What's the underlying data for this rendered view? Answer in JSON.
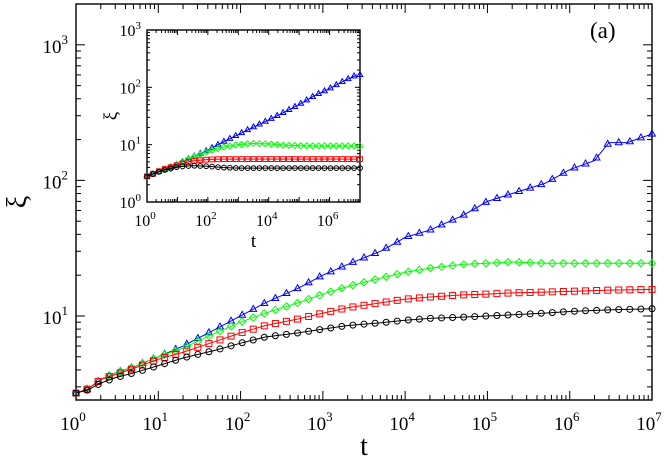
{
  "chart_data": [
    {
      "type": "scatter",
      "panel_label": "(a)",
      "xlabel": "t",
      "ylabel": "ξ",
      "x_scale": "log",
      "y_scale": "log",
      "xlim": [
        1,
        10000000
      ],
      "ylim": [
        2.4,
        2000
      ],
      "x_ticks": [
        {
          "base": "10",
          "exp": "0",
          "value": 1
        },
        {
          "base": "10",
          "exp": "1",
          "value": 10
        },
        {
          "base": "10",
          "exp": "2",
          "value": 100
        },
        {
          "base": "10",
          "exp": "3",
          "value": 1000
        },
        {
          "base": "10",
          "exp": "4",
          "value": 10000
        },
        {
          "base": "10",
          "exp": "5",
          "value": 100000
        },
        {
          "base": "10",
          "exp": "6",
          "value": 1000000
        },
        {
          "base": "10",
          "exp": "7",
          "value": 10000000
        }
      ],
      "y_ticks": [
        {
          "base": "10",
          "exp": "1",
          "value": 10
        },
        {
          "base": "10",
          "exp": "2",
          "value": 100
        },
        {
          "base": "10",
          "exp": "3",
          "value": 1000
        }
      ],
      "series": [
        {
          "color": "#0000ff",
          "marker": "triangle",
          "points": [
            [
              1,
              2.7
            ],
            [
              1.4,
              2.9
            ],
            [
              2,
              3.4
            ],
            [
              3,
              3.8
            ],
            [
              5,
              4.2
            ],
            [
              10,
              5
            ],
            [
              20,
              6
            ],
            [
              50,
              8
            ],
            [
              100,
              10
            ],
            [
              200,
              12.5
            ],
            [
              500,
              16
            ],
            [
              1000,
              20
            ],
            [
              2000,
              24
            ],
            [
              5000,
              30
            ],
            [
              8000,
              35
            ],
            [
              10000,
              38
            ],
            [
              20000,
              43
            ],
            [
              50000,
              55
            ],
            [
              100000,
              70
            ],
            [
              200000,
              80
            ],
            [
              500000,
              95
            ],
            [
              1000000,
              120
            ],
            [
              2000000,
              140
            ],
            [
              3000000,
              190
            ],
            [
              5000000,
              190
            ],
            [
              10000000,
              220
            ]
          ]
        },
        {
          "color": "#00ff00",
          "marker": "diamond",
          "points": [
            [
              1,
              2.7
            ],
            [
              1.4,
              2.9
            ],
            [
              2,
              3.4
            ],
            [
              3,
              3.8
            ],
            [
              5,
              4.2
            ],
            [
              10,
              5
            ],
            [
              20,
              5.8
            ],
            [
              50,
              7.5
            ],
            [
              100,
              9
            ],
            [
              200,
              10.5
            ],
            [
              500,
              12.5
            ],
            [
              1000,
              14.5
            ],
            [
              2000,
              16.5
            ],
            [
              5000,
              19
            ],
            [
              10000,
              21
            ],
            [
              20000,
              22.5
            ],
            [
              50000,
              24
            ],
            [
              100000,
              24.5
            ],
            [
              200000,
              25
            ],
            [
              500000,
              24.5
            ],
            [
              1000000,
              24.5
            ],
            [
              3000000,
              24.5
            ],
            [
              10000000,
              24.5
            ]
          ]
        },
        {
          "color": "#ff0000",
          "marker": "square",
          "points": [
            [
              1,
              2.7
            ],
            [
              1.4,
              2.9
            ],
            [
              2,
              3.4
            ],
            [
              3,
              3.7
            ],
            [
              5,
              4.1
            ],
            [
              10,
              4.8
            ],
            [
              20,
              5.4
            ],
            [
              50,
              6.5
            ],
            [
              100,
              7.5
            ],
            [
              200,
              8.5
            ],
            [
              500,
              9.5
            ],
            [
              1000,
              10.5
            ],
            [
              2000,
              11.5
            ],
            [
              5000,
              12.5
            ],
            [
              10000,
              13.3
            ],
            [
              20000,
              13.8
            ],
            [
              50000,
              14.3
            ],
            [
              100000,
              14.5
            ],
            [
              200000,
              14.8
            ],
            [
              500000,
              15
            ],
            [
              1000000,
              15.2
            ],
            [
              3000000,
              15.5
            ],
            [
              10000000,
              15.7
            ]
          ]
        },
        {
          "color": "#000000",
          "marker": "circle",
          "points": [
            [
              1,
              2.7
            ],
            [
              1.4,
              2.85
            ],
            [
              2,
              3.2
            ],
            [
              3,
              3.5
            ],
            [
              5,
              3.8
            ],
            [
              10,
              4.3
            ],
            [
              20,
              4.9
            ],
            [
              50,
              5.6
            ],
            [
              100,
              6.3
            ],
            [
              200,
              7
            ],
            [
              500,
              7.5
            ],
            [
              1000,
              8
            ],
            [
              2000,
              8.5
            ],
            [
              5000,
              8.9
            ],
            [
              10000,
              9.3
            ],
            [
              20000,
              9.6
            ],
            [
              50000,
              9.8
            ],
            [
              100000,
              10
            ],
            [
              200000,
              10.2
            ],
            [
              500000,
              10.5
            ],
            [
              1000000,
              10.8
            ],
            [
              3000000,
              11.1
            ],
            [
              10000000,
              11.3
            ]
          ]
        }
      ]
    },
    {
      "type": "scatter",
      "xlabel": "t",
      "ylabel": "ξ",
      "x_scale": "log",
      "y_scale": "log",
      "xlim": [
        1,
        10000000
      ],
      "ylim": [
        1,
        1000
      ],
      "x_ticks": [
        {
          "base": "10",
          "exp": "0",
          "value": 1
        },
        {
          "base": "10",
          "exp": "2",
          "value": 100
        },
        {
          "base": "10",
          "exp": "4",
          "value": 10000
        },
        {
          "base": "10",
          "exp": "6",
          "value": 1000000
        }
      ],
      "y_ticks": [
        {
          "base": "10",
          "exp": "0",
          "value": 1
        },
        {
          "base": "10",
          "exp": "1",
          "value": 10
        },
        {
          "base": "10",
          "exp": "2",
          "value": 100
        },
        {
          "base": "10",
          "exp": "3",
          "value": 1000
        }
      ],
      "series": [
        {
          "color": "#0000ff",
          "marker": "triangle",
          "points": [
            [
              1,
              2.8
            ],
            [
              3,
              3.5
            ],
            [
              10,
              4.5
            ],
            [
              30,
              6
            ],
            [
              100,
              8
            ],
            [
              300,
              11
            ],
            [
              1000,
              15
            ],
            [
              3000,
              20
            ],
            [
              10000,
              27
            ],
            [
              30000,
              36
            ],
            [
              100000,
              50
            ],
            [
              300000,
              70
            ],
            [
              1000000,
              95
            ],
            [
              3000000,
              130
            ],
            [
              8000000,
              165
            ]
          ]
        },
        {
          "color": "#00ff00",
          "marker": "diamond",
          "points": [
            [
              1,
              2.8
            ],
            [
              3,
              3.6
            ],
            [
              10,
              4.6
            ],
            [
              30,
              6
            ],
            [
              100,
              7.6
            ],
            [
              300,
              9
            ],
            [
              1000,
              10
            ],
            [
              3000,
              10.5
            ],
            [
              10000,
              10.3
            ],
            [
              30000,
              9.8
            ],
            [
              100000,
              9.6
            ],
            [
              300000,
              9.5
            ],
            [
              1000000,
              9.5
            ],
            [
              3000000,
              9.5
            ],
            [
              8000000,
              9.5
            ]
          ]
        },
        {
          "color": "#ff0000",
          "marker": "square",
          "points": [
            [
              1,
              2.8
            ],
            [
              3,
              3.6
            ],
            [
              10,
              4.4
            ],
            [
              30,
              5.2
            ],
            [
              100,
              5.5
            ],
            [
              300,
              5.6
            ],
            [
              1000,
              5.6
            ],
            [
              3000,
              5.6
            ],
            [
              10000,
              5.6
            ],
            [
              30000,
              5.6
            ],
            [
              100000,
              5.6
            ],
            [
              300000,
              5.6
            ],
            [
              1000000,
              5.6
            ],
            [
              3000000,
              5.6
            ],
            [
              8000000,
              5.6
            ]
          ]
        },
        {
          "color": "#000000",
          "marker": "circle",
          "points": [
            [
              1,
              2.8
            ],
            [
              3,
              3.5
            ],
            [
              10,
              4.1
            ],
            [
              30,
              4.3
            ],
            [
              100,
              4.2
            ],
            [
              300,
              4
            ],
            [
              1000,
              3.9
            ],
            [
              3000,
              3.9
            ],
            [
              10000,
              3.9
            ],
            [
              30000,
              3.9
            ],
            [
              100000,
              3.9
            ],
            [
              300000,
              3.9
            ],
            [
              1000000,
              3.9
            ],
            [
              3000000,
              3.9
            ],
            [
              8000000,
              3.9
            ]
          ]
        }
      ]
    }
  ]
}
